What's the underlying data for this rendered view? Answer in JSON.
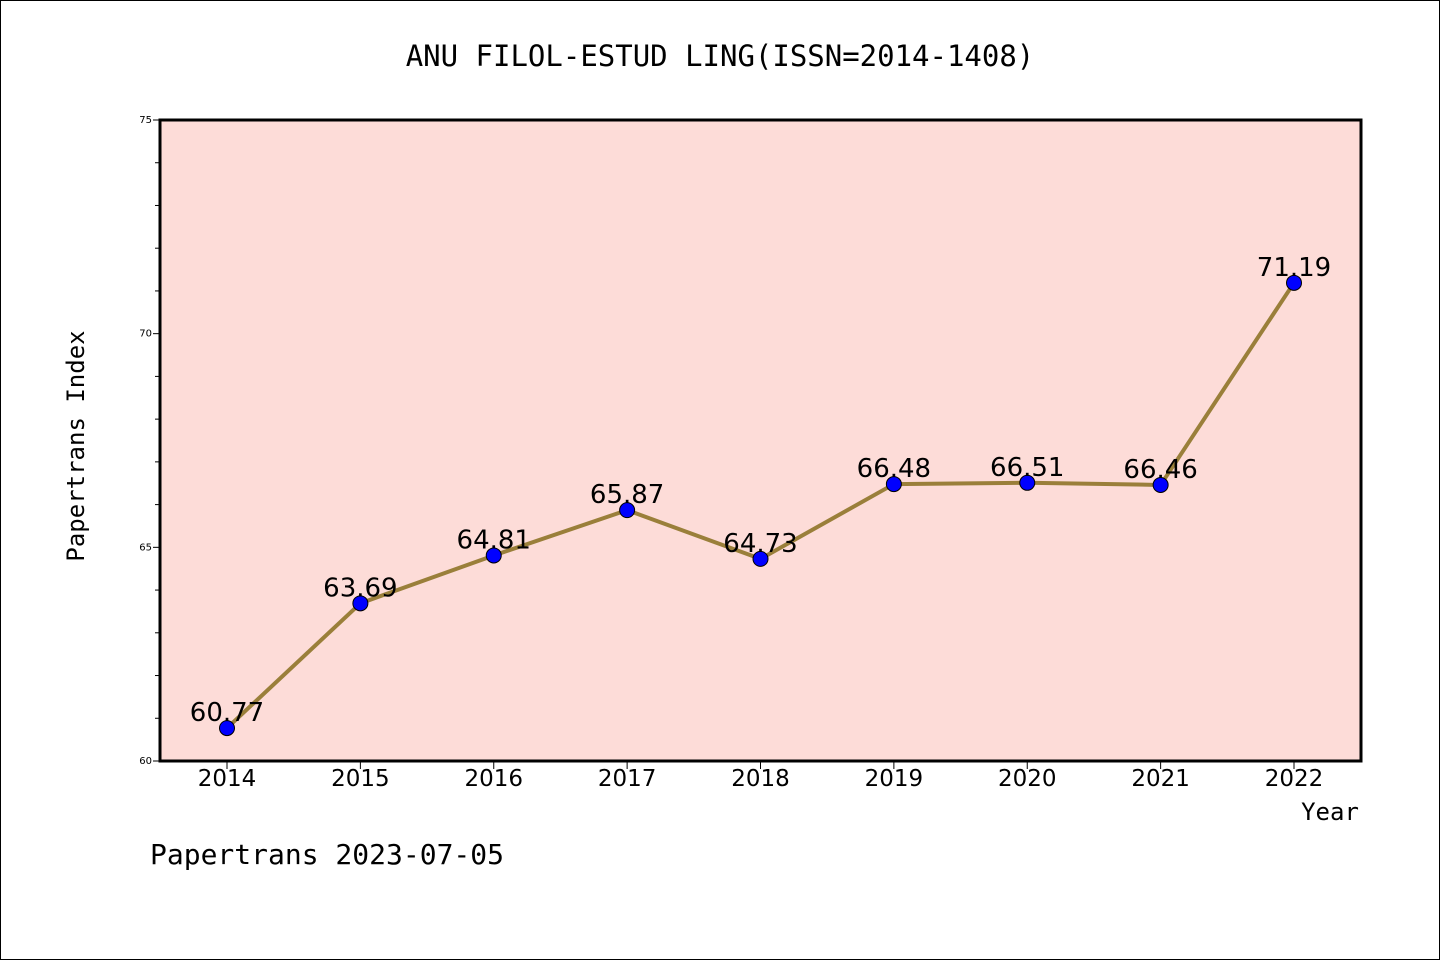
{
  "chart_data": {
    "type": "line",
    "title": "ANU FILOL-ESTUD LING(ISSN=2014-1408)",
    "xlabel": "Year",
    "ylabel": "Papertrans Index",
    "categories": [
      "2014",
      "2015",
      "2016",
      "2017",
      "2018",
      "2019",
      "2020",
      "2021",
      "2022"
    ],
    "series": [
      {
        "values": [
          60.77,
          63.69,
          64.81,
          65.87,
          64.73,
          66.48,
          66.51,
          66.46,
          71.19
        ],
        "labels": [
          "60.77",
          "63.69",
          "64.81",
          "65.87",
          "64.73",
          "66.48",
          "66.51",
          "66.46",
          "71.19"
        ],
        "line_color": "#9a7f3a",
        "marker_color": "#0000ff"
      }
    ],
    "ylim": [
      60,
      75
    ],
    "yticks": [
      "60",
      "65",
      "70",
      "75"
    ],
    "grid": false,
    "plot_background": "#fddcd8"
  },
  "footer": "Papertrans 2023-07-05"
}
